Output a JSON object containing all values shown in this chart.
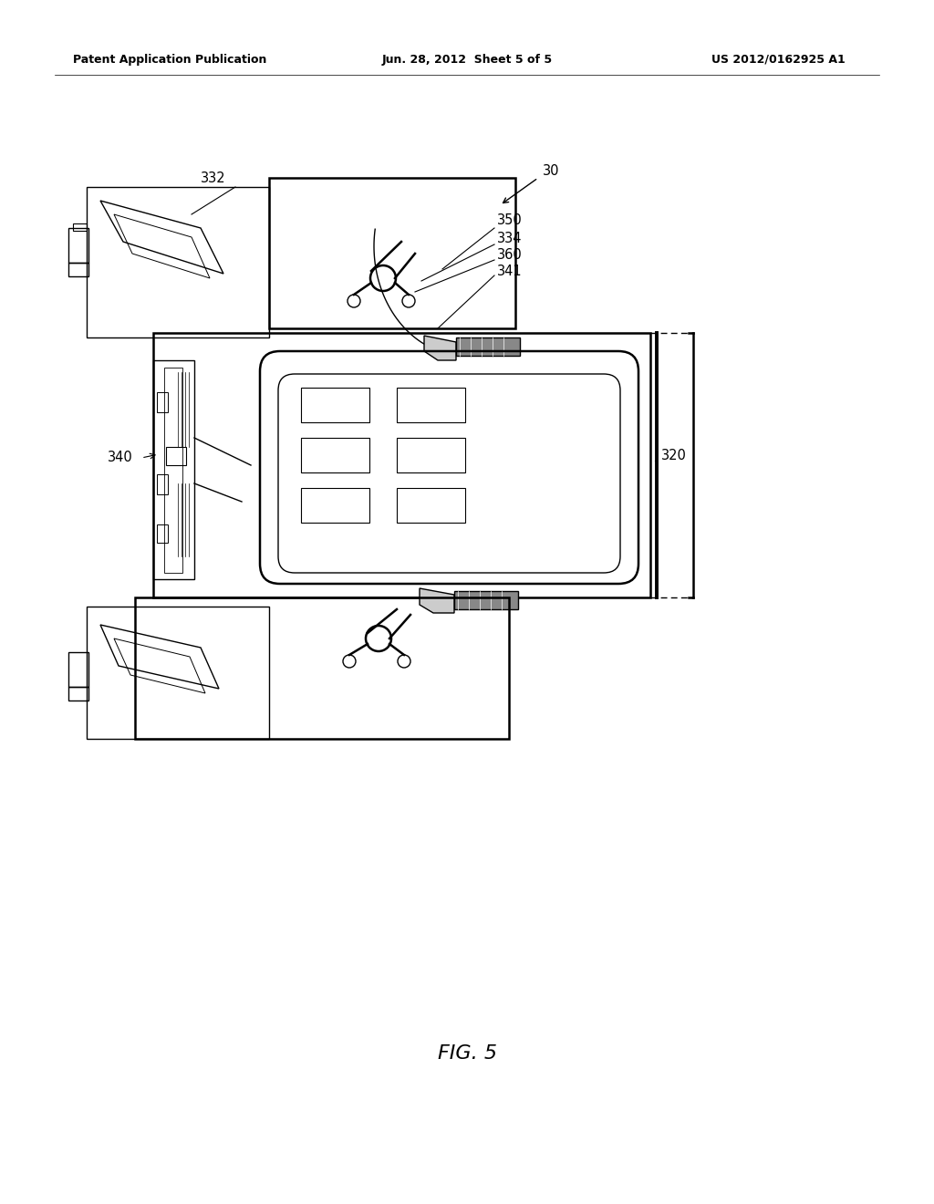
{
  "background_color": "#ffffff",
  "header_left": "Patent Application Publication",
  "header_center": "Jun. 28, 2012  Sheet 5 of 5",
  "header_right": "US 2012/0162925 A1",
  "figure_label": "FIG. 5",
  "line_color": "#000000",
  "lw": 1.0,
  "lw_thick": 1.8,
  "label_fontsize": 10.5
}
